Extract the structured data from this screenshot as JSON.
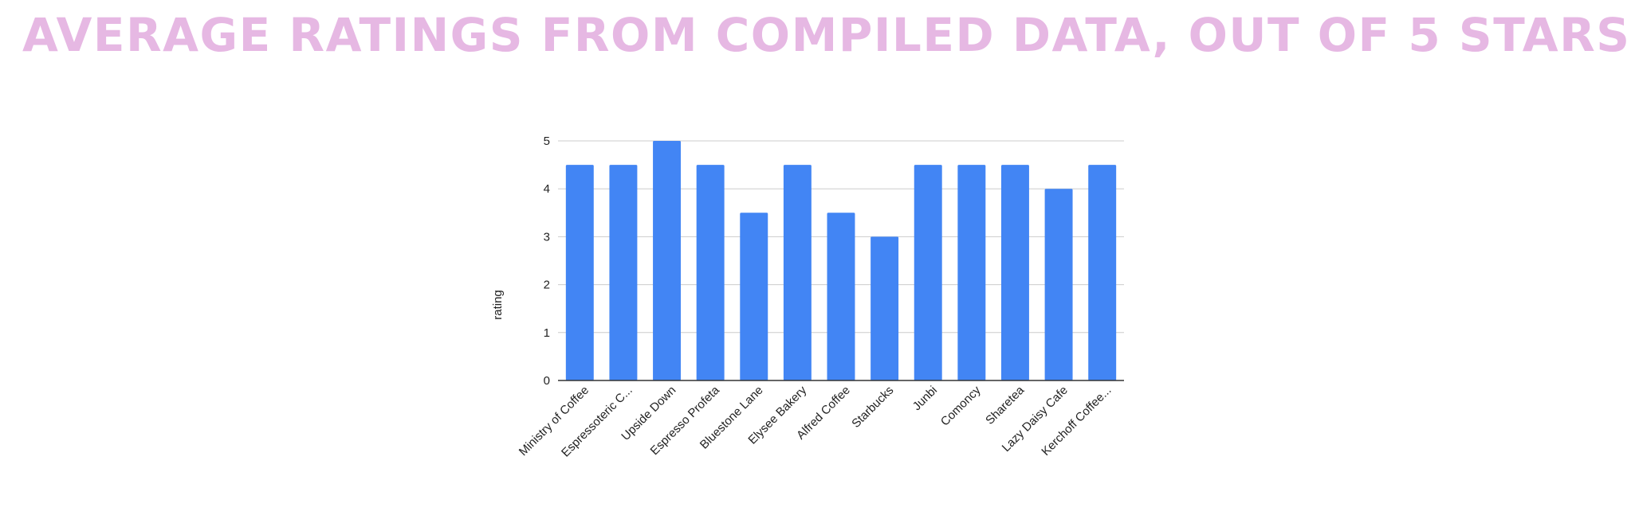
{
  "title": "AVERAGE RATINGS FROM COMPILED DATA, OUT OF 5 STARS",
  "colors": {
    "title": "#e6b8e3",
    "bar": "#4285f4",
    "grid": "#cccccc",
    "axis": "#333333"
  },
  "chart_data": {
    "type": "bar",
    "title": "",
    "xlabel": "",
    "ylabel": "rating",
    "ylim": [
      0,
      5
    ],
    "yticks": [
      0,
      1,
      2,
      3,
      4,
      5
    ],
    "grid": true,
    "legend": "none",
    "categories": [
      "Ministry of Coffee",
      "Espressoteric C...",
      "Upside Down",
      "Espresso Profeta",
      "Bluestone Lane",
      "Elysee Bakery",
      "Alfred Coffee",
      "Starbucks",
      "Junbi",
      "Comoncy",
      "Sharetea",
      "Lazy Daisy Cafe",
      "Kerchoff Coffee..."
    ],
    "values": [
      4.5,
      4.5,
      5,
      4.5,
      3.5,
      4.5,
      3.5,
      3,
      4.5,
      4.5,
      4.5,
      4,
      4.5
    ]
  }
}
